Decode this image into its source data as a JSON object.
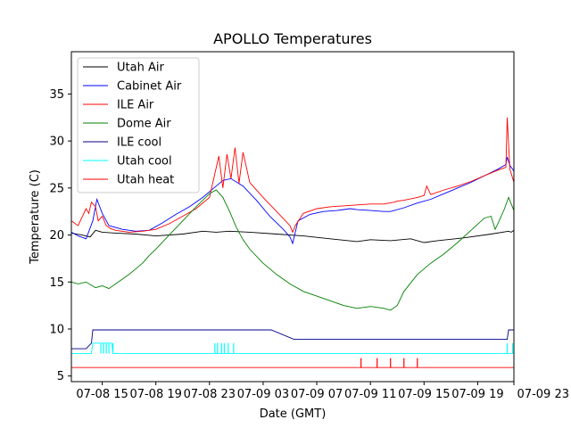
{
  "chart_data": {
    "type": "line",
    "title": "APOLLO Temperatures",
    "xlabel": "Date (GMT)",
    "ylabel": "Temperature (C)",
    "xlim": [
      12.7,
      45.7
    ],
    "ylim": [
      4.4,
      39.5
    ],
    "grid": false,
    "legend_position": "upper-left",
    "x_ticks": [
      {
        "value": 15,
        "label": "07-08 15"
      },
      {
        "value": 19,
        "label": "07-08 19"
      },
      {
        "value": 23,
        "label": "07-08 23"
      },
      {
        "value": 27,
        "label": "07-09 03"
      },
      {
        "value": 31,
        "label": "07-09 07"
      },
      {
        "value": 35,
        "label": "07-09 11"
      },
      {
        "value": 39,
        "label": "07-09 15"
      },
      {
        "value": 43,
        "label": "07-09 19"
      },
      {
        "value": 47,
        "label": "07-09 23"
      }
    ],
    "y_ticks": [
      {
        "value": 5,
        "label": "5"
      },
      {
        "value": 10,
        "label": "10"
      },
      {
        "value": 15,
        "label": "15"
      },
      {
        "value": 20,
        "label": "20"
      },
      {
        "value": 25,
        "label": "25"
      },
      {
        "value": 30,
        "label": "30"
      },
      {
        "value": 35,
        "label": "35"
      }
    ],
    "series": [
      {
        "name": "Utah Air",
        "color": "#000000",
        "x": [
          12.7,
          13.5,
          14.1,
          14.5,
          15.0,
          16.0,
          17.5,
          19.0,
          21.0,
          22.5,
          23.5,
          24.5,
          26.0,
          28.0,
          30.0,
          32.0,
          34.0,
          35.0,
          36.5,
          38.0,
          39.0,
          40.0,
          42.0,
          44.0,
          45.3,
          45.5,
          45.7
        ],
        "y": [
          20.2,
          20.0,
          19.8,
          20.5,
          20.3,
          20.2,
          20.1,
          19.9,
          20.1,
          20.4,
          20.3,
          20.4,
          20.3,
          20.1,
          19.9,
          19.6,
          19.3,
          19.5,
          19.4,
          19.6,
          19.2,
          19.4,
          19.7,
          20.1,
          20.4,
          20.3,
          20.5
        ]
      },
      {
        "name": "Cabinet Air",
        "color": "#0000ff",
        "x": [
          12.7,
          13.2,
          13.8,
          14.3,
          14.6,
          15.0,
          15.5,
          16.5,
          17.5,
          18.5,
          19.5,
          20.5,
          21.5,
          22.5,
          23.5,
          24.0,
          24.6,
          25.5,
          26.5,
          27.5,
          28.5,
          29.0,
          29.2,
          29.6,
          30.5,
          31.5,
          32.5,
          33.5,
          34.0,
          35.0,
          36.0,
          36.5,
          37.5,
          38.5,
          39.5,
          40.5,
          41.5,
          42.5,
          43.5,
          44.5,
          45.1,
          45.2,
          45.4,
          45.7
        ],
        "y": [
          20.3,
          19.9,
          19.6,
          21.5,
          23.8,
          22.3,
          21.0,
          20.6,
          20.4,
          20.5,
          21.3,
          22.2,
          23.0,
          24.0,
          25.2,
          25.8,
          26.0,
          25.2,
          23.7,
          22.0,
          20.6,
          19.8,
          19.1,
          21.5,
          22.2,
          22.5,
          22.6,
          22.8,
          22.7,
          22.6,
          22.5,
          22.5,
          22.9,
          23.4,
          23.8,
          24.4,
          25.0,
          25.6,
          26.3,
          27.0,
          27.5,
          28.3,
          27.4,
          26.8
        ]
      },
      {
        "name": "ILE Air",
        "color": "#ff0000",
        "x": [
          12.7,
          13.2,
          13.8,
          14.0,
          14.2,
          14.5,
          14.7,
          15.0,
          15.3,
          15.6,
          16.0,
          17.0,
          18.0,
          19.0,
          20.0,
          21.0,
          22.0,
          23.0,
          23.7,
          24.0,
          24.3,
          24.6,
          24.9,
          25.2,
          25.5,
          26.0,
          27.0,
          28.0,
          29.0,
          29.2,
          29.4,
          30.0,
          31.0,
          32.0,
          33.0,
          34.0,
          35.0,
          36.0,
          36.8,
          37.0,
          37.5,
          38.5,
          39.0,
          39.2,
          39.5,
          40.5,
          41.5,
          42.5,
          43.5,
          44.5,
          45.1,
          45.2,
          45.4,
          45.7
        ],
        "y": [
          21.5,
          21.0,
          22.8,
          22.3,
          23.5,
          23.0,
          21.5,
          22.0,
          21.0,
          20.7,
          20.5,
          20.3,
          20.4,
          20.6,
          21.2,
          22.0,
          22.8,
          24.0,
          28.4,
          25.0,
          28.6,
          26.0,
          29.3,
          25.5,
          28.8,
          25.6,
          24.0,
          22.5,
          21.0,
          20.3,
          21.0,
          22.3,
          22.8,
          23.0,
          23.1,
          23.2,
          23.3,
          23.3,
          23.5,
          23.6,
          23.7,
          24.0,
          24.2,
          25.2,
          24.3,
          24.8,
          25.2,
          25.7,
          26.3,
          26.9,
          27.2,
          32.5,
          27.0,
          25.6
        ]
      },
      {
        "name": "Dome Air",
        "color": "#008000",
        "x": [
          12.7,
          13.2,
          13.8,
          14.5,
          15.0,
          15.5,
          16.0,
          17.0,
          18.0,
          18.5,
          19.0,
          20.0,
          21.0,
          22.0,
          23.0,
          23.5,
          24.0,
          24.5,
          25.0,
          25.5,
          26.0,
          27.0,
          28.0,
          29.0,
          30.0,
          31.0,
          32.0,
          33.0,
          34.0,
          35.0,
          35.5,
          36.0,
          36.5,
          37.0,
          37.5,
          38.5,
          39.5,
          40.5,
          41.5,
          42.5,
          43.5,
          44.0,
          44.3,
          44.6,
          45.0,
          45.3,
          45.7
        ],
        "y": [
          15.0,
          14.8,
          15.0,
          14.4,
          14.6,
          14.3,
          14.8,
          15.8,
          17.0,
          17.8,
          18.5,
          20.0,
          21.5,
          23.0,
          24.4,
          24.8,
          24.0,
          22.5,
          20.8,
          19.5,
          18.5,
          17.0,
          15.8,
          14.8,
          14.0,
          13.5,
          13.0,
          12.5,
          12.2,
          12.4,
          12.3,
          12.2,
          12.0,
          12.5,
          14.0,
          15.8,
          17.0,
          18.0,
          19.2,
          20.5,
          21.8,
          22.0,
          20.6,
          21.5,
          22.8,
          24.0,
          22.6
        ]
      },
      {
        "name": "ILE cool",
        "color": "#00008b",
        "step": true,
        "x": [
          12.7,
          13.8,
          14.2,
          14.3,
          27.6,
          29.3,
          45.2,
          45.3,
          45.7
        ],
        "y": [
          7.9,
          7.9,
          8.5,
          9.9,
          9.9,
          8.9,
          8.9,
          9.9,
          9.9
        ]
      },
      {
        "name": "Utah cool",
        "color": "#00ffff",
        "step": true,
        "x": [
          12.7,
          14.2,
          14.3,
          15.7,
          15.8,
          45.7
        ],
        "y": [
          7.4,
          7.4,
          8.5,
          8.5,
          7.4,
          7.4
        ]
      },
      {
        "name": "Utah heat",
        "color": "#ff0000",
        "step": true,
        "x": [
          12.7,
          45.7
        ],
        "y": [
          5.9,
          5.9
        ]
      }
    ],
    "pulses": [
      {
        "series": "Utah cool",
        "color": "#00ffff",
        "base": 7.4,
        "top": 8.5,
        "x": [
          14.9,
          15.1,
          15.3,
          15.5,
          15.8,
          23.4,
          23.6,
          23.9,
          24.1,
          24.4,
          24.8,
          45.2,
          45.6
        ]
      },
      {
        "series": "Utah heat",
        "color": "#ff0000",
        "base": 5.9,
        "top": 6.9,
        "x": [
          34.3,
          35.5,
          36.5,
          37.5,
          38.5
        ]
      }
    ]
  }
}
